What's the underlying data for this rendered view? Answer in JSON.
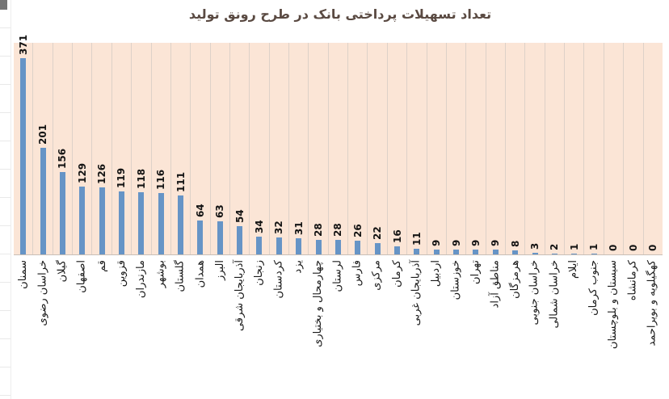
{
  "window": {
    "background_color": "#ffffff",
    "spreadsheet_strip": {
      "line_color": "#e9e9e9",
      "corner_mark_color": "#757575"
    }
  },
  "chart_data": {
    "type": "bar",
    "title": "تعداد تسهیلات پرداختی بانک در طرح رونق تولید",
    "xlabel": "",
    "ylabel": "",
    "legend": "none",
    "grid": "vertical category separators only",
    "ylim": [
      0,
      400
    ],
    "value_axis_visible": false,
    "data_labels": "rotated 90°, bold, above each bar",
    "category_labels_rotation": 90,
    "categories": [
      "سمنان",
      "خراسان رضوی",
      "گیلان",
      "اصفهان",
      "قم",
      "قزوین",
      "مازندران",
      "بوشهر",
      "گلستان",
      "همدان",
      "البرز",
      "آذربایجان شرقی",
      "زنجان",
      "کردستان",
      "یزد",
      "چهارمحال و بختیاری",
      "لرستان",
      "فارس",
      "مرکزی",
      "کرمان",
      "آذربایجان غربی",
      "اردبیل",
      "خوزستان",
      "تهران",
      "مناطق آزاد",
      "هرمزگان",
      "خراسان جنوبی",
      "خراسان شمالی",
      "ایلام",
      "جنوب کرمان",
      "سیستان و بلوچستان",
      "کرمانشاه",
      "کهگیلویه و بویراحمد"
    ],
    "values": [
      371,
      201,
      156,
      129,
      126,
      119,
      118,
      116,
      111,
      64,
      63,
      54,
      34,
      32,
      31,
      28,
      28,
      26,
      22,
      16,
      11,
      9,
      9,
      9,
      9,
      8,
      3,
      2,
      1,
      1,
      0,
      0,
      0
    ],
    "colors": {
      "bar": "#6694c6",
      "plot_background": "#fbe5d6",
      "gridline": "#ddd1c8",
      "axis_line": "#c9bfb7",
      "title_text": "#5a4a42",
      "label_text": "#141414"
    }
  }
}
